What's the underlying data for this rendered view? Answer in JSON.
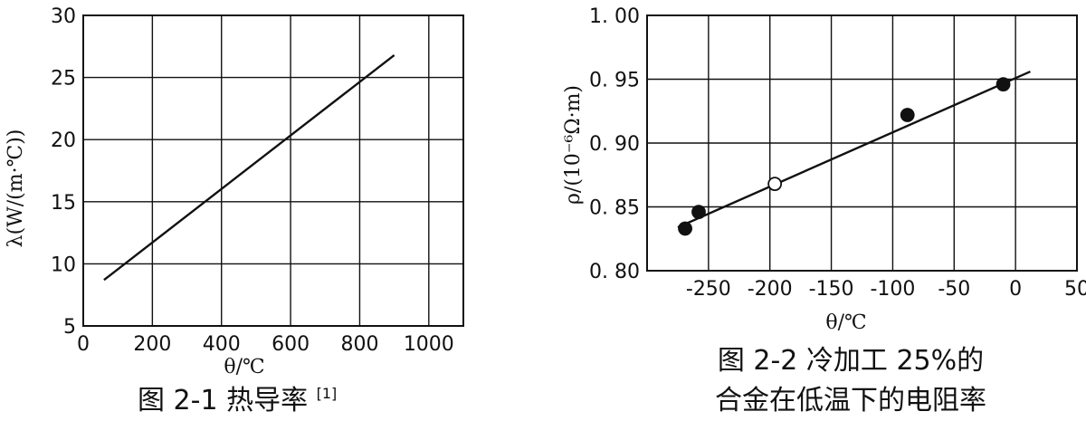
{
  "chart_data": [
    {
      "type": "line",
      "caption_prefix": "图 2-1 热导率",
      "caption_ref": "[1]",
      "xlabel": "θ/℃",
      "ylabel": "λ(W/(m·℃))",
      "xlim": [
        0,
        1100
      ],
      "ylim": [
        5,
        30
      ],
      "xticks": [
        0,
        200,
        400,
        600,
        800,
        1000
      ],
      "yticks": [
        5,
        10,
        15,
        20,
        25,
        30
      ],
      "xtick_labels": [
        "0",
        "200",
        "400",
        "600",
        "800",
        "1000"
      ],
      "ytick_labels": [
        "5",
        "10",
        "15",
        "20",
        "25",
        "30"
      ],
      "grid": true,
      "series": [
        {
          "x": [
            60,
            900
          ],
          "y": [
            8.7,
            26.8
          ]
        }
      ]
    },
    {
      "type": "scatter",
      "caption_line1": "图 2-2 冷加工 25%的",
      "caption_line2": "合金在低温下的电阻率",
      "xlabel": "θ/℃",
      "ylabel": "ρ/(10⁻⁶Ω·m)",
      "xlim": [
        -300,
        50
      ],
      "ylim": [
        0.8,
        1.0
      ],
      "xticks": [
        -250,
        -200,
        -150,
        -100,
        -50,
        0,
        50
      ],
      "yticks": [
        0.8,
        0.85,
        0.9,
        0.95,
        1.0
      ],
      "xtick_labels": [
        "-250",
        "-200",
        "-150",
        "-100",
        "-50",
        "0",
        "50"
      ],
      "ytick_labels": [
        "0. 80",
        "0. 85",
        "0. 90",
        "0. 95",
        "1. 00"
      ],
      "grid": true,
      "points": [
        {
          "x": -269,
          "y": 0.833,
          "filled": true
        },
        {
          "x": -258,
          "y": 0.846,
          "filled": true
        },
        {
          "x": -196,
          "y": 0.868,
          "filled": false
        },
        {
          "x": -88,
          "y": 0.922,
          "filled": true
        },
        {
          "x": -10,
          "y": 0.946,
          "filled": true
        }
      ],
      "fit_line": {
        "x": [
          -275,
          12
        ],
        "y": [
          0.834,
          0.956
        ]
      }
    }
  ]
}
